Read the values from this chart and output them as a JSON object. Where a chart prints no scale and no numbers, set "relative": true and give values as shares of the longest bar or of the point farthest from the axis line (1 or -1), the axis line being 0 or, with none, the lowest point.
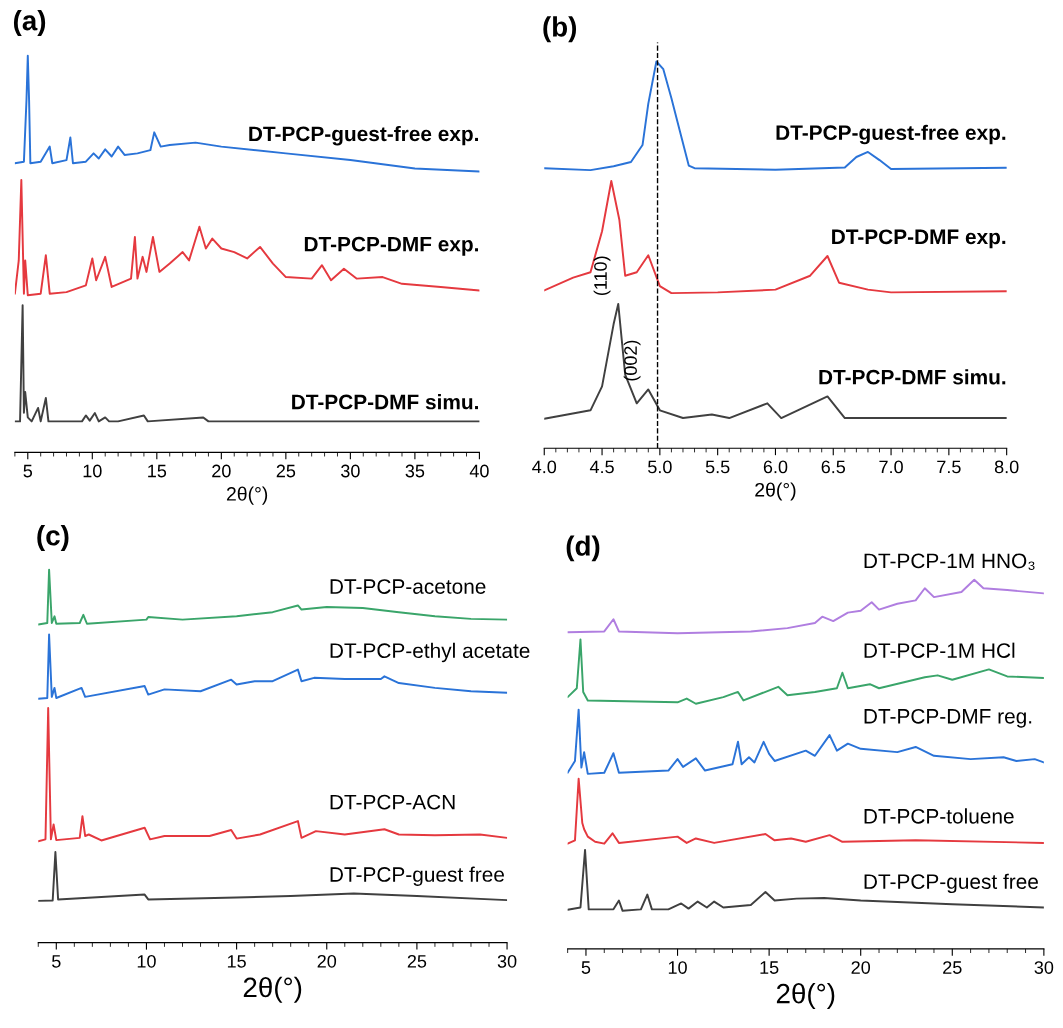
{
  "chart_data": [
    {
      "type": "line",
      "title": "(a)",
      "xlabel": "2θ(°)",
      "relative": true,
      "xlim": [
        4,
        40
      ],
      "xticks": [
        5,
        10,
        15,
        20,
        25,
        30,
        35,
        40
      ],
      "series": [
        {
          "name": "DT-PCP-guest-free exp.",
          "color": "#2a73d8",
          "x": [
            4.0,
            4.7,
            4.9,
            5.0,
            5.1,
            5.2,
            6.0,
            6.7,
            6.9,
            8.0,
            8.3,
            8.5,
            9.5,
            10.1,
            10.5,
            11.0,
            11.5,
            12.0,
            12.5,
            13.5,
            14.5,
            14.8,
            15.3,
            16.0,
            18.0,
            20.0,
            25.0,
            30.0,
            35.0,
            40.0
          ],
          "values": [
            0.729,
            0.733,
            0.889,
            1.0,
            0.889,
            0.729,
            0.733,
            0.771,
            0.729,
            0.737,
            0.794,
            0.729,
            0.733,
            0.754,
            0.741,
            0.764,
            0.746,
            0.771,
            0.75,
            0.754,
            0.762,
            0.807,
            0.771,
            0.775,
            0.781,
            0.771,
            0.754,
            0.737,
            0.716,
            0.708
          ]
        },
        {
          "name": "DT-PCP-DMF exp.",
          "color": "#e5393f",
          "x": [
            4.0,
            4.3,
            4.5,
            4.7,
            4.8,
            5.0,
            6.0,
            6.4,
            6.7,
            8.0,
            9.5,
            10.0,
            10.3,
            11.0,
            11.5,
            13.0,
            13.3,
            13.5,
            13.9,
            14.2,
            14.7,
            15.2,
            16.0,
            17.0,
            17.5,
            18.3,
            18.8,
            19.3,
            20.0,
            21.0,
            22.0,
            23.0,
            24.0,
            25.0,
            27.0,
            27.8,
            28.5,
            29.5,
            30.5,
            32.5,
            34.0,
            37.0,
            40.0
          ],
          "values": [
            0.4,
            0.484,
            0.687,
            0.4,
            0.484,
            0.396,
            0.4,
            0.497,
            0.4,
            0.404,
            0.421,
            0.489,
            0.434,
            0.493,
            0.417,
            0.438,
            0.543,
            0.438,
            0.493,
            0.455,
            0.543,
            0.455,
            0.476,
            0.505,
            0.484,
            0.569,
            0.514,
            0.539,
            0.514,
            0.505,
            0.489,
            0.518,
            0.476,
            0.442,
            0.438,
            0.472,
            0.434,
            0.463,
            0.438,
            0.442,
            0.425,
            0.417,
            0.408
          ]
        },
        {
          "name": "DT-PCP-DMF simu.",
          "color": "#404040",
          "x": [
            4.0,
            4.4,
            4.6,
            4.7,
            4.8,
            5.0,
            5.3,
            5.8,
            6.0,
            6.4,
            6.6,
            9.2,
            9.5,
            9.8,
            10.2,
            10.5,
            11.0,
            11.3,
            12.0,
            14.0,
            14.3,
            18.6,
            19.0,
            40.0
          ],
          "values": [
            0.078,
            0.078,
            0.371,
            0.1,
            0.152,
            0.088,
            0.078,
            0.112,
            0.078,
            0.137,
            0.078,
            0.078,
            0.093,
            0.08,
            0.099,
            0.078,
            0.088,
            0.078,
            0.078,
            0.093,
            0.078,
            0.088,
            0.078,
            0.078
          ]
        }
      ]
    },
    {
      "type": "line",
      "title": "(b)",
      "xlabel": "2θ(°)",
      "relative": true,
      "xlim": [
        4.0,
        8.0
      ],
      "xticks": [
        {
          "value": 4.0,
          "label": "4.0"
        },
        {
          "value": 4.5,
          "label": "4.5"
        },
        {
          "value": 5.0,
          "label": "5.0"
        },
        {
          "value": 5.5,
          "label": "5.5"
        },
        {
          "value": 6.0,
          "label": "6.0"
        },
        {
          "value": 6.5,
          "label": "6.5"
        },
        {
          "value": 7.0,
          "label": "7.0"
        },
        {
          "value": 7.5,
          "label": "7.5"
        },
        {
          "value": 8.0,
          "label": "8.0"
        }
      ],
      "ref_lines": [
        {
          "axis": "x",
          "value": 4.98,
          "label": null,
          "color": "#000000",
          "line_style": "dashed"
        }
      ],
      "annotations": [
        {
          "text": "(110)",
          "x": 4.64,
          "y": 0.373
        },
        {
          "text": "(002)",
          "x": 4.9,
          "y": 0.152
        }
      ],
      "series": [
        {
          "name": "DT-PCP-guest-free exp.",
          "color": "#2a73d8",
          "x": [
            4.0,
            4.4,
            4.6,
            4.75,
            4.85,
            4.9,
            4.97,
            5.03,
            5.1,
            5.15,
            5.25,
            5.3,
            6.0,
            6.6,
            6.7,
            6.8,
            6.9,
            7.0,
            8.0
          ],
          "values": [
            0.724,
            0.719,
            0.729,
            0.74,
            0.784,
            0.891,
            1.0,
            0.98,
            0.905,
            0.847,
            0.731,
            0.724,
            0.72,
            0.726,
            0.753,
            0.766,
            0.745,
            0.722,
            0.725
          ]
        },
        {
          "name": "DT-PCP-DMF exp.",
          "color": "#e5393f",
          "x": [
            4.0,
            4.25,
            4.4,
            4.5,
            4.58,
            4.65,
            4.7,
            4.8,
            4.9,
            5.0,
            5.1,
            5.5,
            6.0,
            6.3,
            6.45,
            6.55,
            6.8,
            7.0,
            8.0
          ],
          "values": [
            0.408,
            0.441,
            0.455,
            0.561,
            0.691,
            0.59,
            0.446,
            0.455,
            0.499,
            0.419,
            0.401,
            0.403,
            0.41,
            0.446,
            0.497,
            0.428,
            0.41,
            0.403,
            0.406
          ]
        },
        {
          "name": "DT-PCP-DMF simu.",
          "color": "#404040",
          "x": [
            4.0,
            4.4,
            4.5,
            4.6,
            4.64,
            4.7,
            4.8,
            4.9,
            5.0,
            5.2,
            5.45,
            5.6,
            5.93,
            6.05,
            6.45,
            6.6,
            8.0
          ],
          "values": [
            0.076,
            0.098,
            0.16,
            0.321,
            0.373,
            0.19,
            0.116,
            0.152,
            0.098,
            0.078,
            0.087,
            0.078,
            0.116,
            0.078,
            0.134,
            0.078,
            0.078
          ]
        }
      ]
    },
    {
      "type": "line",
      "title": "(c)",
      "xlabel": "2θ(°)",
      "relative": true,
      "xlim": [
        4,
        30
      ],
      "xticks": [
        5,
        10,
        15,
        20,
        25,
        30
      ],
      "series": [
        {
          "name": "DT-PCP-acetone",
          "color": "#3aa56a",
          "x": [
            4.0,
            4.5,
            4.6,
            4.75,
            4.9,
            5.0,
            6.3,
            6.5,
            6.7,
            10.0,
            10.1,
            12.0,
            15.0,
            17.0,
            18.4,
            18.6,
            20.0,
            22.0,
            24.0,
            26.0,
            28.0,
            30.0
          ],
          "values": [
            0.853,
            0.857,
            1.0,
            0.857,
            0.875,
            0.855,
            0.857,
            0.879,
            0.855,
            0.866,
            0.873,
            0.866,
            0.875,
            0.886,
            0.904,
            0.893,
            0.9,
            0.897,
            0.886,
            0.875,
            0.868,
            0.866
          ]
        },
        {
          "name": "DT-PCP-ethyl acetate",
          "color": "#2a73d8",
          "x": [
            4.0,
            4.5,
            4.6,
            4.75,
            4.9,
            5.0,
            6.4,
            6.6,
            9.9,
            10.1,
            11.0,
            13.0,
            14.7,
            15.0,
            16.0,
            17.0,
            18.4,
            18.6,
            19.3,
            21.0,
            23.0,
            23.2,
            24.0,
            26.0,
            28.0,
            30.0
          ],
          "values": [
            0.654,
            0.656,
            0.826,
            0.659,
            0.683,
            0.656,
            0.683,
            0.659,
            0.688,
            0.665,
            0.679,
            0.674,
            0.705,
            0.692,
            0.701,
            0.701,
            0.732,
            0.701,
            0.71,
            0.707,
            0.707,
            0.714,
            0.696,
            0.683,
            0.674,
            0.67
          ]
        },
        {
          "name": "DT-PCP-ACN",
          "color": "#e5393f",
          "x": [
            4.0,
            4.4,
            4.55,
            4.7,
            4.85,
            5.0,
            6.3,
            6.45,
            6.6,
            6.8,
            7.5,
            9.9,
            10.2,
            11.0,
            13.5,
            13.8,
            14.7,
            15.0,
            16.3,
            18.4,
            18.6,
            19.4,
            21.0,
            23.2,
            24.0,
            26.0,
            28.5,
            30.0
          ],
          "values": [
            0.272,
            0.277,
            0.629,
            0.277,
            0.317,
            0.275,
            0.281,
            0.339,
            0.286,
            0.29,
            0.274,
            0.308,
            0.277,
            0.286,
            0.286,
            0.29,
            0.302,
            0.279,
            0.29,
            0.326,
            0.281,
            0.299,
            0.29,
            0.304,
            0.29,
            0.288,
            0.29,
            0.281
          ]
        },
        {
          "name": "DT-PCP-guest free",
          "color": "#404040",
          "x": [
            4.0,
            4.8,
            4.95,
            5.1,
            9.9,
            10.1,
            15.0,
            18.0,
            21.5,
            25.0,
            30.0
          ],
          "values": [
            0.112,
            0.113,
            0.243,
            0.116,
            0.129,
            0.116,
            0.121,
            0.125,
            0.132,
            0.125,
            0.114
          ]
        }
      ]
    },
    {
      "type": "line",
      "title": "(d)",
      "xlabel": "2θ(°)",
      "relative": true,
      "xlim": [
        4,
        30
      ],
      "xticks": [
        5,
        10,
        15,
        20,
        25,
        30
      ],
      "series": [
        {
          "name": "DT-PCP-1M HNO₃",
          "color": "#b07ee0",
          "x": [
            4.0,
            6.0,
            6.5,
            6.8,
            10.0,
            14.0,
            16.0,
            17.5,
            17.9,
            18.5,
            19.3,
            20.0,
            20.6,
            21.0,
            22.0,
            23.0,
            23.5,
            24.0,
            25.5,
            26.2,
            26.7,
            28.0,
            30.0
          ],
          "values": [
            0.858,
            0.86,
            0.893,
            0.86,
            0.855,
            0.86,
            0.869,
            0.883,
            0.9,
            0.888,
            0.911,
            0.916,
            0.939,
            0.919,
            0.935,
            0.944,
            0.977,
            0.953,
            0.967,
            1.0,
            0.977,
            0.972,
            0.963
          ]
        },
        {
          "name": "DT-PCP-1M HCl",
          "color": "#3aa56a",
          "x": [
            4.0,
            4.5,
            4.7,
            4.85,
            5.1,
            10.0,
            10.5,
            11.0,
            12.5,
            13.3,
            13.6,
            15.5,
            16.0,
            17.5,
            18.7,
            19.0,
            19.3,
            20.5,
            21.0,
            23.5,
            24.2,
            25.0,
            27.0,
            28.0,
            30.0
          ],
          "values": [
            0.682,
            0.706,
            0.838,
            0.696,
            0.673,
            0.668,
            0.678,
            0.664,
            0.682,
            0.696,
            0.673,
            0.71,
            0.687,
            0.696,
            0.706,
            0.748,
            0.706,
            0.717,
            0.706,
            0.736,
            0.741,
            0.729,
            0.757,
            0.738,
            0.734
          ]
        },
        {
          "name": "DT-PCP-DMF reg.",
          "color": "#2a73d8",
          "x": [
            4.0,
            4.4,
            4.6,
            4.75,
            4.9,
            5.1,
            6.0,
            6.5,
            6.8,
            9.5,
            10.0,
            10.3,
            11.0,
            11.5,
            13.0,
            13.3,
            13.5,
            13.9,
            14.2,
            14.7,
            15.0,
            15.3,
            17.0,
            17.5,
            18.3,
            18.7,
            19.3,
            20.0,
            22.0,
            23.0,
            24.0,
            26.0,
            27.8,
            28.5,
            29.5,
            30.0
          ],
          "values": [
            0.477,
            0.509,
            0.648,
            0.491,
            0.533,
            0.474,
            0.477,
            0.53,
            0.477,
            0.483,
            0.514,
            0.493,
            0.516,
            0.483,
            0.5,
            0.561,
            0.5,
            0.519,
            0.505,
            0.561,
            0.528,
            0.509,
            0.537,
            0.523,
            0.579,
            0.537,
            0.556,
            0.542,
            0.533,
            0.547,
            0.523,
            0.514,
            0.519,
            0.509,
            0.514,
            0.505
          ]
        },
        {
          "name": "DT-PCP-toluene",
          "color": "#e5393f",
          "x": [
            4.0,
            4.4,
            4.6,
            4.8,
            4.9,
            5.1,
            5.5,
            6.0,
            6.45,
            6.8,
            10.0,
            10.5,
            11.0,
            12.0,
            14.8,
            15.3,
            16.2,
            17.0,
            18.3,
            19.0,
            23.0,
            30.0
          ],
          "values": [
            0.285,
            0.294,
            0.461,
            0.341,
            0.324,
            0.304,
            0.29,
            0.285,
            0.313,
            0.287,
            0.304,
            0.287,
            0.299,
            0.287,
            0.311,
            0.294,
            0.299,
            0.29,
            0.308,
            0.29,
            0.294,
            0.287
          ]
        },
        {
          "name": "DT-PCP-guest free",
          "color": "#404040",
          "x": [
            4.0,
            4.7,
            4.95,
            5.15,
            6.5,
            6.8,
            7.0,
            8.0,
            8.35,
            8.6,
            9.5,
            10.2,
            10.6,
            11.1,
            11.6,
            12.0,
            12.5,
            14.0,
            14.8,
            15.3,
            16.5,
            18.0,
            20.0,
            25.0,
            30.0
          ],
          "values": [
            0.106,
            0.112,
            0.268,
            0.107,
            0.107,
            0.131,
            0.103,
            0.107,
            0.147,
            0.107,
            0.107,
            0.123,
            0.109,
            0.128,
            0.112,
            0.128,
            0.112,
            0.119,
            0.154,
            0.131,
            0.136,
            0.138,
            0.131,
            0.121,
            0.112
          ]
        }
      ]
    }
  ]
}
